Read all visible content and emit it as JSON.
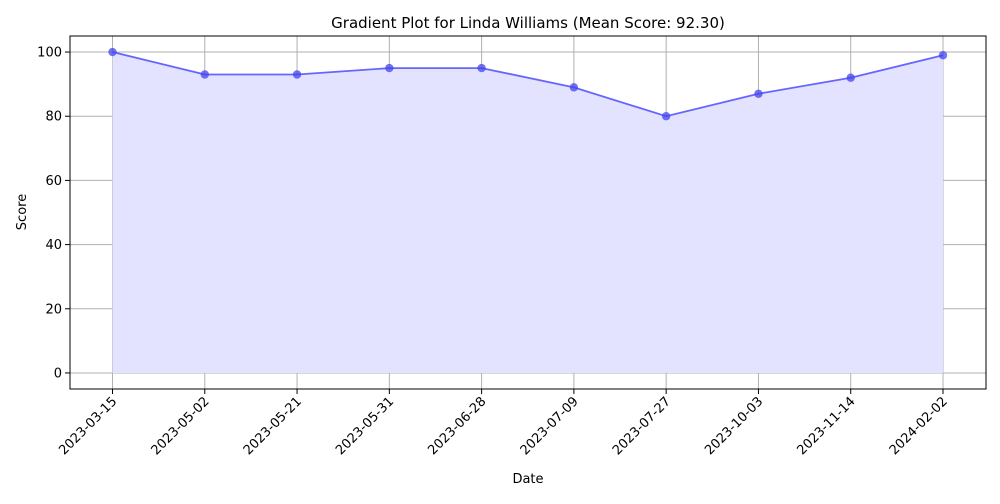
{
  "chart_data": {
    "type": "area",
    "title": "Gradient Plot for Linda Williams (Mean Score: 92.30)",
    "xlabel": "Date",
    "ylabel": "Score",
    "x": [
      "2023-03-15",
      "2023-05-02",
      "2023-05-21",
      "2023-05-31",
      "2023-06-28",
      "2023-07-09",
      "2023-07-27",
      "2023-10-03",
      "2023-11-14",
      "2024-02-02"
    ],
    "values": [
      100,
      93,
      93,
      95,
      95,
      89,
      80,
      87,
      92,
      99
    ],
    "ylim": [
      -5,
      105
    ],
    "yticks": [
      0,
      20,
      40,
      60,
      80,
      100
    ],
    "grid": true,
    "line_color": "#6666ff",
    "fill_color": "#e3e3ff",
    "marker_color": "#4444ee"
  }
}
